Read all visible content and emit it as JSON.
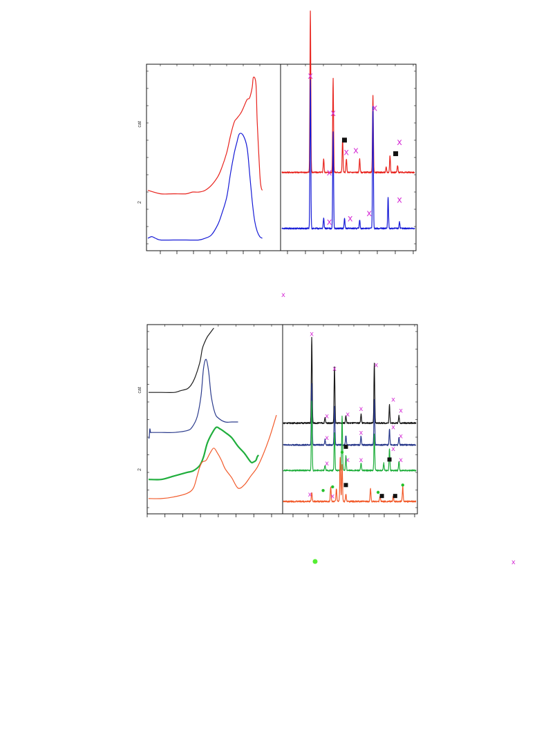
{
  "figure": {
    "top_ylabel_upper": "cat",
    "top_ylabel_lower": "2",
    "bottom_ylabel_upper": "cat",
    "bottom_ylabel_lower": "2",
    "legend_x_text": "x"
  },
  "colors": {
    "red": "#e8221c",
    "blue": "#1419d6",
    "black": "#1a1a1a",
    "navy": "#2a3a8c",
    "green": "#1fae3c",
    "orange": "#f25a2a",
    "x_marker": "#d633d6",
    "dot_marker": "#24c02a",
    "legend_dot": "#55ee33",
    "square": "#111111"
  },
  "icons": {
    "x_marker": "x-phase-marker",
    "dot_marker": "green-dot-phase-marker",
    "square_marker": "black-square-phase-marker"
  },
  "chart_data": [
    {
      "type": "line",
      "panel": "top-left",
      "title": "",
      "xlabel": "",
      "ylabel": "",
      "xlim": [
        0,
        100
      ],
      "ylim": [
        0,
        100
      ],
      "series": [
        {
          "color": "red",
          "x": [
            0,
            10,
            20,
            30,
            35,
            40,
            45,
            50,
            55,
            58,
            62,
            65,
            68,
            70,
            73,
            75,
            78,
            80,
            82,
            83,
            85,
            86,
            88,
            89,
            90
          ],
          "y": [
            30,
            28,
            28,
            28,
            29,
            29,
            30,
            33,
            38,
            43,
            52,
            62,
            70,
            72,
            75,
            78,
            83,
            84,
            90,
            96,
            92,
            70,
            40,
            32,
            30
          ]
        },
        {
          "color": "blue",
          "x": [
            0,
            3,
            6,
            10,
            20,
            30,
            40,
            45,
            50,
            55,
            58,
            62,
            65,
            68,
            70,
            72,
            75,
            78,
            80,
            82,
            84,
            86,
            88,
            90
          ],
          "y": [
            2,
            3,
            2,
            1,
            1,
            1,
            1,
            2,
            4,
            10,
            16,
            26,
            40,
            52,
            58,
            63,
            62,
            55,
            40,
            24,
            12,
            6,
            3,
            2
          ]
        }
      ]
    },
    {
      "type": "line",
      "panel": "top-right",
      "title": "",
      "xlabel": "",
      "ylabel": "",
      "xlim": [
        10,
        80
      ],
      "ylim": [
        0,
        100
      ],
      "series": [
        {
          "color": "red",
          "baseline": 40,
          "peaks": [
            [
              25,
              95
            ],
            [
              32,
              8
            ],
            [
              37,
              55
            ],
            [
              42,
              20
            ],
            [
              44,
              8
            ],
            [
              51,
              8
            ],
            [
              58,
              45
            ],
            [
              65,
              3
            ],
            [
              67,
              10
            ],
            [
              71,
              4
            ]
          ]
        },
        {
          "color": "blue",
          "baseline": 7,
          "peaks": [
            [
              25,
              88
            ],
            [
              32,
              6
            ],
            [
              37,
              57
            ],
            [
              43,
              6
            ],
            [
              51,
              5
            ],
            [
              58,
              72
            ],
            [
              66,
              18
            ],
            [
              72,
              4
            ]
          ]
        }
      ],
      "annotations": [
        {
          "mark": "x",
          "x": 25,
          "y": 97
        },
        {
          "mark": "x",
          "x": 35,
          "y": 40
        },
        {
          "mark": "x",
          "x": 37,
          "y": 75
        },
        {
          "mark": "x",
          "x": 44,
          "y": 52
        },
        {
          "mark": "x",
          "x": 49,
          "y": 53
        },
        {
          "mark": "x",
          "x": 59,
          "y": 78
        },
        {
          "mark": "x",
          "x": 72,
          "y": 58
        },
        {
          "mark": "x",
          "x": 35,
          "y": 11
        },
        {
          "mark": "x",
          "x": 46,
          "y": 13
        },
        {
          "mark": "x",
          "x": 56,
          "y": 16
        },
        {
          "mark": "x",
          "x": 72,
          "y": 24
        },
        {
          "mark": "square",
          "x": 43,
          "y": 59
        },
        {
          "mark": "square",
          "x": 70,
          "y": 51
        }
      ]
    },
    {
      "type": "line",
      "panel": "bottom-left",
      "title": "",
      "xlabel": "",
      "ylabel": "",
      "xlim": [
        0,
        100
      ],
      "ylim": [
        0,
        100
      ],
      "series": [
        {
          "color": "black",
          "x": [
            0,
            10,
            20,
            25,
            30,
            33,
            36,
            40,
            42,
            44,
            46,
            48,
            50,
            51
          ],
          "y": [
            65,
            65,
            65,
            66,
            67,
            69,
            73,
            82,
            90,
            94,
            97,
            99,
            101,
            102
          ]
        },
        {
          "color": "navy",
          "x": [
            0,
            0.5,
            1,
            1.5,
            2,
            3,
            5,
            10,
            20,
            30,
            34,
            38,
            41,
            43,
            45,
            47,
            49,
            52,
            55,
            60,
            65,
            70
          ],
          "y": [
            39,
            39,
            44,
            42,
            42,
            42,
            42,
            42,
            42,
            43,
            45,
            51,
            63,
            79,
            84,
            77,
            63,
            53,
            50,
            48,
            48,
            48
          ]
        },
        {
          "color": "green",
          "x": [
            0,
            10,
            20,
            30,
            35,
            40,
            43,
            46,
            50,
            53,
            56,
            60,
            65,
            70,
            75,
            80,
            82,
            84,
            85,
            86
          ],
          "y": [
            15,
            15,
            17,
            19,
            20,
            23,
            28,
            36,
            42,
            45,
            44,
            42,
            39,
            34,
            30,
            25,
            25,
            26,
            28,
            29
          ]
        },
        {
          "color": "orange",
          "x": [
            0,
            10,
            20,
            30,
            35,
            38,
            40,
            42,
            45,
            48,
            51,
            54,
            57,
            60,
            65,
            70,
            75,
            80,
            85,
            90,
            95,
            100
          ],
          "y": [
            4,
            4,
            5,
            7,
            10,
            17,
            22,
            25,
            26,
            30,
            33,
            30,
            26,
            21,
            16,
            10,
            12,
            17,
            22,
            30,
            40,
            52
          ]
        }
      ]
    },
    {
      "type": "line",
      "panel": "bottom-right",
      "title": "",
      "xlabel": "",
      "ylabel": "",
      "xlim": [
        10,
        80
      ],
      "ylim": [
        0,
        100
      ],
      "series": [
        {
          "color": "black",
          "baseline": 46,
          "peaks": [
            [
              25,
              47
            ],
            [
              32,
              3
            ],
            [
              37,
              31
            ],
            [
              43,
              4
            ],
            [
              51,
              5
            ],
            [
              58,
              33
            ],
            [
              66,
              10
            ],
            [
              71,
              4
            ]
          ]
        },
        {
          "color": "navy",
          "baseline": 34,
          "peaks": [
            [
              25,
              34
            ],
            [
              32,
              3
            ],
            [
              37,
              21
            ],
            [
              43,
              5
            ],
            [
              51,
              5
            ],
            [
              58,
              25
            ],
            [
              66,
              9
            ],
            [
              71,
              4
            ]
          ]
        },
        {
          "color": "green",
          "baseline": 20,
          "peaks": [
            [
              25,
              38
            ],
            [
              32,
              3
            ],
            [
              37,
              21
            ],
            [
              41,
              30
            ],
            [
              43,
              8
            ],
            [
              51,
              4
            ],
            [
              58,
              20
            ],
            [
              63,
              4
            ],
            [
              66,
              12
            ],
            [
              71,
              5
            ]
          ]
        },
        {
          "color": "orange",
          "baseline": 3,
          "peaks": [
            [
              25,
              5
            ],
            [
              35,
              8
            ],
            [
              38,
              7
            ],
            [
              40,
              24
            ],
            [
              41,
              20
            ],
            [
              43,
              4
            ],
            [
              56,
              7
            ],
            [
              61,
              3
            ],
            [
              68,
              3
            ],
            [
              73,
              8
            ]
          ]
        }
      ],
      "annotations": [
        {
          "mark": "x",
          "x": 25,
          "y": 95
        },
        {
          "mark": "x",
          "x": 37,
          "y": 76
        },
        {
          "mark": "x",
          "x": 59,
          "y": 78
        },
        {
          "mark": "x",
          "x": 68,
          "y": 59
        },
        {
          "mark": "x",
          "x": 72,
          "y": 53
        },
        {
          "mark": "x",
          "x": 33,
          "y": 50
        },
        {
          "mark": "x",
          "x": 44,
          "y": 51
        },
        {
          "mark": "x",
          "x": 51,
          "y": 54
        },
        {
          "mark": "x",
          "x": 33,
          "y": 38
        },
        {
          "mark": "x",
          "x": 51,
          "y": 41
        },
        {
          "mark": "x",
          "x": 68,
          "y": 44
        },
        {
          "mark": "x",
          "x": 72,
          "y": 39
        },
        {
          "mark": "x",
          "x": 33,
          "y": 24
        },
        {
          "mark": "x",
          "x": 44,
          "y": 26
        },
        {
          "mark": "x",
          "x": 51,
          "y": 26
        },
        {
          "mark": "x",
          "x": 68,
          "y": 32
        },
        {
          "mark": "x",
          "x": 72,
          "y": 26
        },
        {
          "mark": "x",
          "x": 24,
          "y": 7
        },
        {
          "mark": "x",
          "x": 36,
          "y": 6
        },
        {
          "mark": "square",
          "x": 43,
          "y": 33
        },
        {
          "mark": "square",
          "x": 66,
          "y": 26
        },
        {
          "mark": "square",
          "x": 43,
          "y": 12
        },
        {
          "mark": "square",
          "x": 62,
          "y": 6
        },
        {
          "mark": "square",
          "x": 69,
          "y": 6
        },
        {
          "mark": "dot",
          "x": 41,
          "y": 30
        },
        {
          "mark": "dot",
          "x": 31,
          "y": 9
        },
        {
          "mark": "dot",
          "x": 36,
          "y": 11
        },
        {
          "mark": "dot",
          "x": 60,
          "y": 8
        },
        {
          "mark": "dot",
          "x": 73,
          "y": 12
        }
      ]
    }
  ]
}
